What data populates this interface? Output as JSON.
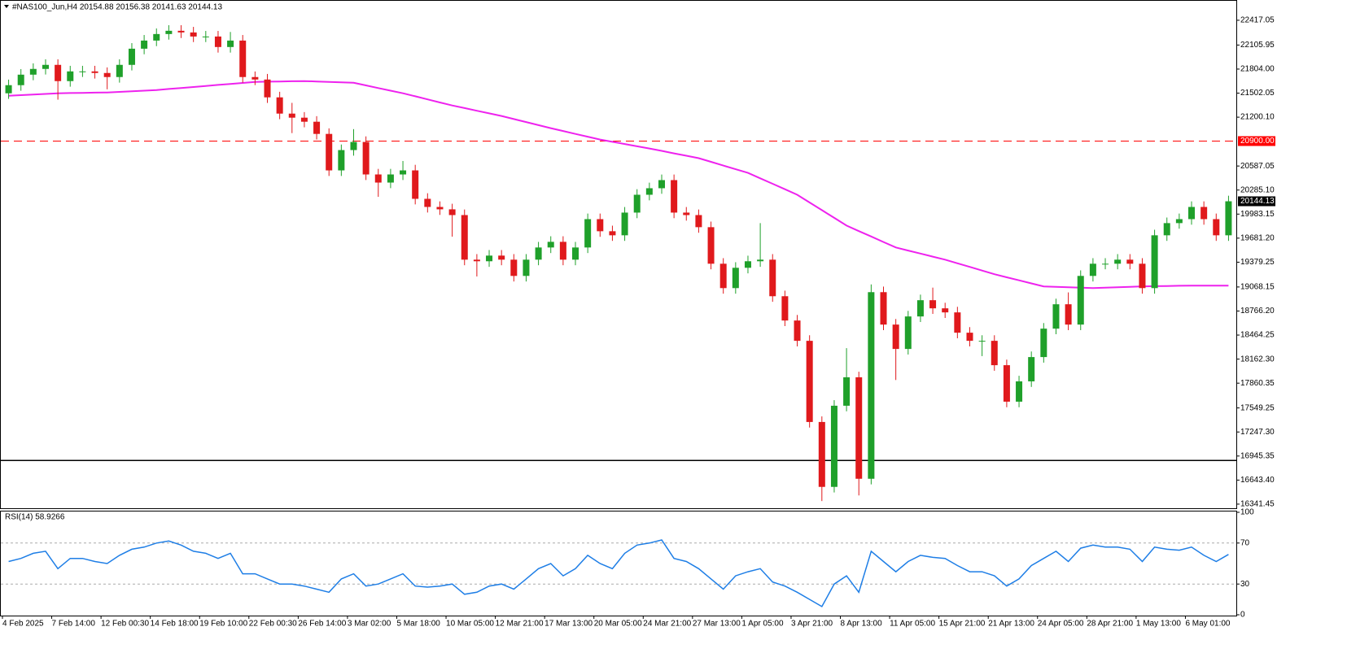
{
  "chart_data": [
    {
      "type": "candlestick",
      "title": "#NAS100_Jun,H4  20154.88 20156.38 20141.63 20144.13",
      "categories": [
        "4 Feb 2025",
        null,
        null,
        null,
        "7 Feb 14:00",
        null,
        null,
        null,
        "12 Feb 00:30",
        null,
        null,
        null,
        "14 Feb 18:00",
        null,
        null,
        null,
        "19 Feb 10:00",
        null,
        null,
        null,
        "22 Feb 00:30",
        null,
        null,
        null,
        "26 Feb 14:00",
        null,
        null,
        null,
        "3 Mar 02:00",
        null,
        null,
        null,
        "5 Mar 18:00",
        null,
        null,
        null,
        "10 Mar 05:00",
        null,
        null,
        null,
        "12 Mar 21:00",
        null,
        null,
        null,
        "17 Mar 13:00",
        null,
        null,
        null,
        "20 Mar 05:00",
        null,
        null,
        null,
        "24 Mar 21:00",
        null,
        null,
        null,
        "27 Mar 13:00",
        null,
        null,
        null,
        "1 Apr 05:00",
        null,
        null,
        null,
        "3 Apr 21:00",
        null,
        null,
        null,
        "8 Apr 13:00",
        null,
        null,
        null,
        "11 Apr 05:00",
        null,
        null,
        null,
        "15 Apr 21:00",
        null,
        null,
        null,
        "21 Apr 13:00",
        null,
        null,
        null,
        "24 Apr 05:00",
        null,
        null,
        null,
        "28 Apr 21:00",
        null,
        null,
        null,
        "1 May 13:00",
        null,
        null,
        null,
        "6 May 01:00",
        null,
        null,
        null
      ],
      "open": [
        21500,
        21602,
        21734,
        21806,
        21857,
        21653,
        21775,
        21775,
        21755,
        21704,
        21857,
        22060,
        22162,
        22244,
        22285,
        22264,
        22213,
        22213,
        22081,
        22162,
        21704,
        21673,
        21449,
        21245,
        21194,
        21143,
        20990,
        20532,
        20787,
        20889,
        20481,
        20379,
        20481,
        20532,
        20175,
        20073,
        20043,
        19971,
        19411,
        19391,
        19462,
        19411,
        19207,
        19411,
        19564,
        19635,
        19411,
        19564,
        19920,
        19768,
        19717,
        20002,
        20226,
        20308,
        20410,
        20002,
        19971,
        19819,
        19360,
        19054,
        19309,
        19391,
        19411,
        18952,
        18647,
        18392,
        17373,
        16558,
        17577,
        17934,
        16660,
        19003,
        18596,
        18290,
        18698,
        18902,
        18800,
        18749,
        18494,
        18392,
        18392,
        18086,
        17628,
        17883,
        18188,
        18545,
        18851,
        18596,
        19207,
        19360,
        19360,
        19411,
        19360,
        19054,
        19717,
        19870,
        19920,
        20073,
        19920,
        19717
      ],
      "high": [
        21672,
        21804,
        21876,
        21927,
        21927,
        21845,
        21845,
        21845,
        21825,
        21927,
        22130,
        22232,
        22314,
        22355,
        22355,
        22334,
        22283,
        22283,
        22270,
        22232,
        21774,
        21743,
        21519,
        21380,
        21264,
        21213,
        21060,
        20857,
        21050,
        20959,
        20551,
        20551,
        20650,
        20602,
        20245,
        20143,
        20113,
        20041,
        19481,
        19532,
        19532,
        19481,
        19481,
        19634,
        19705,
        19705,
        19634,
        19990,
        19990,
        19838,
        20072,
        20296,
        20378,
        20480,
        20480,
        20072,
        20041,
        19889,
        19430,
        19379,
        19461,
        19870,
        19481,
        19022,
        18717,
        18462,
        17443,
        17647,
        18300,
        18004,
        19100,
        19073,
        18666,
        18768,
        18972,
        19060,
        18870,
        18819,
        18564,
        18462,
        18462,
        18156,
        17953,
        18258,
        18615,
        18921,
        19000,
        19277,
        19430,
        19430,
        19481,
        19481,
        19430,
        19787,
        19940,
        19990,
        20143,
        20143,
        19990,
        20214
      ],
      "low": [
        21430,
        21532,
        21664,
        21736,
        21420,
        21583,
        21705,
        21685,
        21550,
        21634,
        21787,
        21990,
        22092,
        22174,
        22194,
        22143,
        22143,
        22011,
        22011,
        21634,
        21603,
        21379,
        21175,
        21000,
        21073,
        20920,
        20462,
        20462,
        20717,
        20411,
        20200,
        20309,
        20411,
        20105,
        20003,
        19973,
        19700,
        19341,
        19200,
        19321,
        19341,
        19137,
        19137,
        19341,
        19494,
        19341,
        19341,
        19494,
        19698,
        19647,
        19647,
        19932,
        20156,
        20238,
        19932,
        19901,
        19749,
        19290,
        18984,
        18984,
        19239,
        19321,
        18882,
        18577,
        18322,
        17303,
        16380,
        16488,
        17507,
        16450,
        16590,
        18526,
        17900,
        18220,
        18628,
        18730,
        18679,
        18424,
        18322,
        18200,
        18016,
        17558,
        17558,
        17813,
        18118,
        18475,
        18526,
        18526,
        19137,
        19290,
        19290,
        19290,
        18984,
        18984,
        19647,
        19800,
        19850,
        19850,
        19647,
        19647
      ],
      "close": [
        21602,
        21734,
        21806,
        21857,
        21653,
        21775,
        21775,
        21755,
        21704,
        21857,
        22060,
        22162,
        22244,
        22285,
        22264,
        22213,
        22213,
        22081,
        22162,
        21704,
        21673,
        21449,
        21245,
        21194,
        21143,
        20990,
        20532,
        20787,
        20889,
        20481,
        20379,
        20481,
        20532,
        20175,
        20073,
        20043,
        19971,
        19411,
        19391,
        19462,
        19411,
        19207,
        19411,
        19564,
        19635,
        19411,
        19564,
        19920,
        19768,
        19717,
        20002,
        20226,
        20308,
        20410,
        20002,
        19971,
        19819,
        19360,
        19054,
        19309,
        19391,
        19411,
        18952,
        18647,
        18392,
        17373,
        16558,
        17577,
        17934,
        16660,
        19003,
        18596,
        18290,
        18698,
        18902,
        18800,
        18749,
        18494,
        18392,
        18392,
        18086,
        17628,
        17883,
        18188,
        18545,
        18851,
        18596,
        19207,
        19360,
        19360,
        19411,
        19360,
        19054,
        19717,
        19870,
        19920,
        20073,
        19920,
        19717,
        20144.13
      ],
      "up_color": "#1fa02a",
      "down_color": "#e0191c",
      "ma": {
        "color": "#ee22ee",
        "values": [
          21469,
          21477,
          21485,
          21492,
          21500,
          21503,
          21505,
          21508,
          21510,
          21518,
          21526,
          21533,
          21541,
          21554,
          21567,
          21579,
          21592,
          21605,
          21618,
          21630,
          21643,
          21646,
          21648,
          21651,
          21653,
          21648,
          21643,
          21637,
          21632,
          21599,
          21566,
          21533,
          21500,
          21462,
          21424,
          21385,
          21347,
          21314,
          21281,
          21248,
          21215,
          21177,
          21139,
          21100,
          21062,
          21026,
          20990,
          20955,
          20919,
          20891,
          20863,
          20835,
          20807,
          20777,
          20746,
          20716,
          20685,
          20639,
          20593,
          20547,
          20501,
          20432,
          20364,
          20295,
          20226,
          20129,
          20033,
          19936,
          19839,
          19770,
          19702,
          19633,
          19564,
          19526,
          19488,
          19449,
          19411,
          19365,
          19320,
          19274,
          19228,
          19190,
          19152,
          19113,
          19075,
          19070,
          19065,
          19059,
          19054,
          19059,
          19065,
          19070,
          19075,
          19078,
          19080,
          19083,
          19085,
          19085,
          19085,
          19085
        ]
      },
      "ylim": [
        16300,
        22651
      ],
      "yticks": [
        22417.05,
        22105.95,
        {
          "value": 21804,
          "label": "21804.00"
        },
        21502.05,
        {
          "value": 21200.1,
          "label": "21200.10"
        },
        20587.05,
        {
          "value": 20285.1,
          "label": "20285.10"
        },
        19983.15,
        {
          "value": 19681.2,
          "label": "19681.20"
        },
        19379.25,
        19068.15,
        {
          "value": 18766.2,
          "label": "18766.20"
        },
        18464.25,
        {
          "value": 18162.3,
          "label": "18162.30"
        },
        17860.35,
        17549.25,
        {
          "value": 17247.3,
          "label": "17247.30"
        },
        16945.35,
        {
          "value": 16643.4,
          "label": "16643.40"
        },
        16341.45
      ],
      "hlines": [
        {
          "value": 20900,
          "label": "20900.00",
          "color": "#ff0000",
          "style": "dashed"
        },
        {
          "value": 16890,
          "color": "#000000",
          "style": "solid"
        }
      ]
    },
    {
      "type": "line",
      "title": "RSI(14) 58.9266",
      "color": "#1e7ee6",
      "values": [
        52,
        55,
        60,
        62,
        45,
        55,
        55,
        52,
        50,
        58,
        64,
        66,
        70,
        72,
        68,
        62,
        60,
        55,
        60,
        40,
        40,
        35,
        30,
        30,
        28,
        25,
        22,
        35,
        40,
        28,
        30,
        35,
        40,
        28,
        27,
        28,
        30,
        20,
        22,
        28,
        30,
        25,
        35,
        45,
        50,
        38,
        45,
        58,
        50,
        45,
        60,
        68,
        70,
        73,
        55,
        52,
        45,
        35,
        25,
        38,
        42,
        45,
        32,
        28,
        22,
        15,
        8,
        30,
        38,
        22,
        62,
        52,
        42,
        52,
        58,
        56,
        55,
        48,
        42,
        42,
        38,
        28,
        35,
        48,
        55,
        62,
        52,
        65,
        68,
        66,
        66,
        64,
        52,
        66,
        64,
        63,
        66,
        58,
        52,
        58.9266
      ],
      "ylim": [
        0,
        100
      ],
      "yticks": [
        100,
        70,
        30,
        0
      ],
      "levels": [
        70,
        30
      ]
    }
  ]
}
